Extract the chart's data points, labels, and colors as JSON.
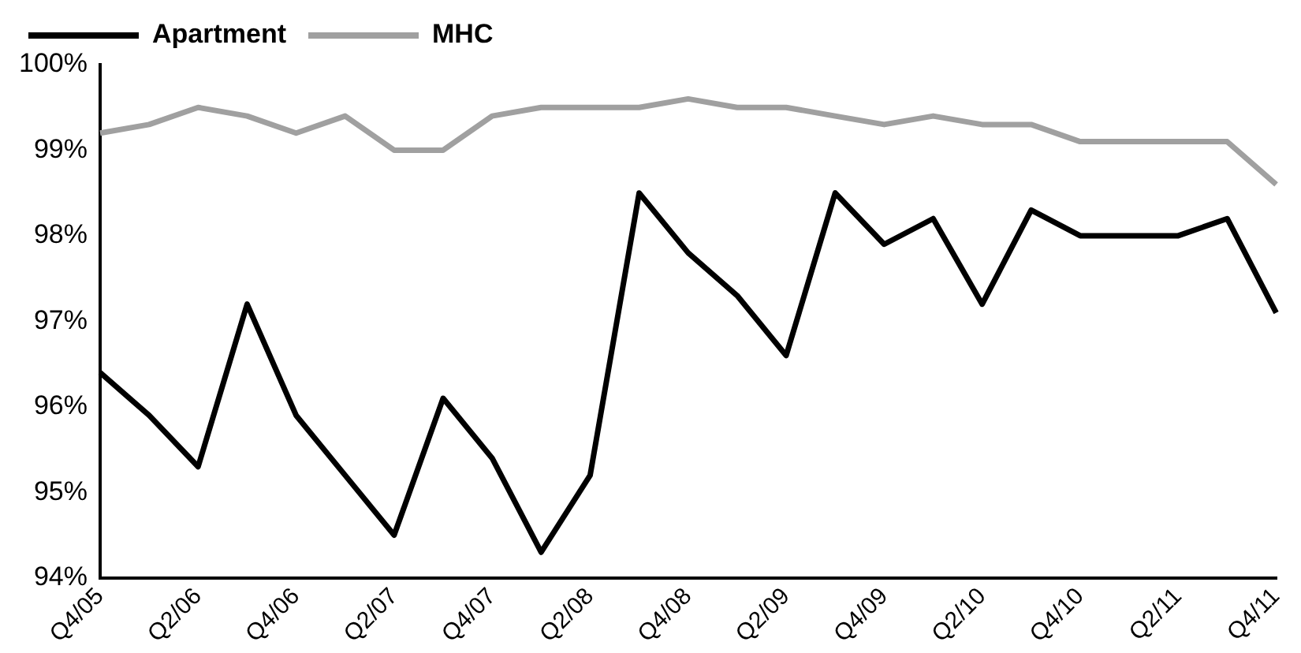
{
  "chart_data": {
    "type": "line",
    "categories": [
      "Q4/05",
      null,
      "Q2/06",
      null,
      "Q4/06",
      null,
      "Q2/07",
      null,
      "Q4/07",
      null,
      "Q2/08",
      null,
      "Q4/08",
      null,
      "Q2/09",
      null,
      "Q4/09",
      null,
      "Q2/10",
      null,
      "Q4/10",
      null,
      "Q2/11",
      null,
      "Q4/11"
    ],
    "series": [
      {
        "name": "Apartment",
        "color": "#000000",
        "values": [
          96.4,
          95.9,
          95.3,
          97.2,
          95.9,
          95.2,
          94.5,
          96.1,
          95.4,
          94.3,
          95.2,
          98.5,
          97.8,
          97.3,
          96.6,
          98.5,
          97.9,
          98.2,
          97.2,
          98.3,
          98.0,
          98.0,
          98.0,
          98.2,
          97.1
        ]
      },
      {
        "name": "MHC",
        "color": "#a0a0a0",
        "values": [
          99.2,
          99.3,
          99.5,
          99.4,
          99.2,
          99.4,
          99.0,
          99.0,
          99.4,
          99.5,
          99.5,
          99.5,
          99.6,
          99.5,
          99.5,
          99.4,
          99.3,
          99.4,
          99.3,
          99.3,
          99.1,
          99.1,
          99.1,
          99.1,
          98.6
        ]
      }
    ],
    "ylim": [
      94,
      100
    ],
    "yticks": [
      {
        "value": 94,
        "label": "94%"
      },
      {
        "value": 95,
        "label": "95%"
      },
      {
        "value": 96,
        "label": "96%"
      },
      {
        "value": 97,
        "label": "97%"
      },
      {
        "value": 98,
        "label": "98%"
      },
      {
        "value": 99,
        "label": "99%"
      },
      {
        "value": 100,
        "label": "100%"
      }
    ],
    "grid": false,
    "legend": "top left",
    "marker": "none",
    "line_style": "solid"
  }
}
